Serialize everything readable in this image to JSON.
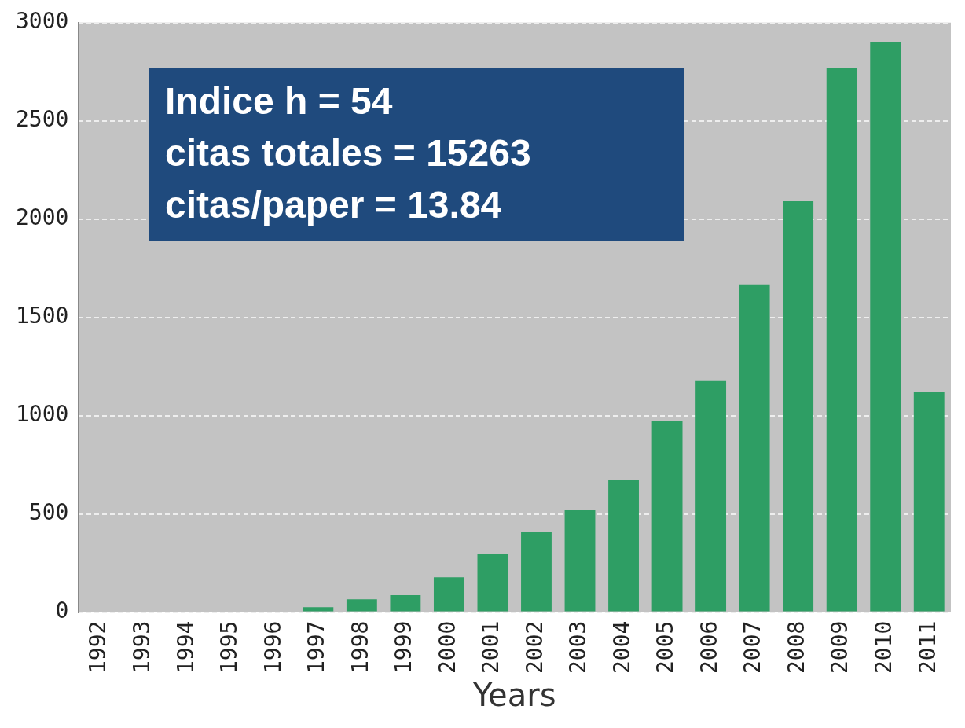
{
  "chart_data": {
    "type": "bar",
    "xlabel": "Years",
    "categories": [
      "1992",
      "1993",
      "1994",
      "1995",
      "1996",
      "1997",
      "1998",
      "1999",
      "2000",
      "2001",
      "2002",
      "2003",
      "2004",
      "2005",
      "2006",
      "2007",
      "2008",
      "2009",
      "2010",
      "2011"
    ],
    "values": [
      0,
      0,
      0,
      0,
      0,
      25,
      65,
      86,
      177,
      294,
      406,
      518,
      670,
      972,
      1180,
      1668,
      2091,
      2769,
      2899,
      1123
    ],
    "color": "#2e9e64",
    "ylim": [
      0,
      3000
    ],
    "yticks": [
      0,
      500,
      1000,
      1500,
      2000,
      2500,
      3000
    ],
    "grid": "y",
    "legend": false,
    "annotations": [
      "Indice h = 54",
      "citas totales = 15263",
      "citas/paper = 13.84"
    ]
  }
}
